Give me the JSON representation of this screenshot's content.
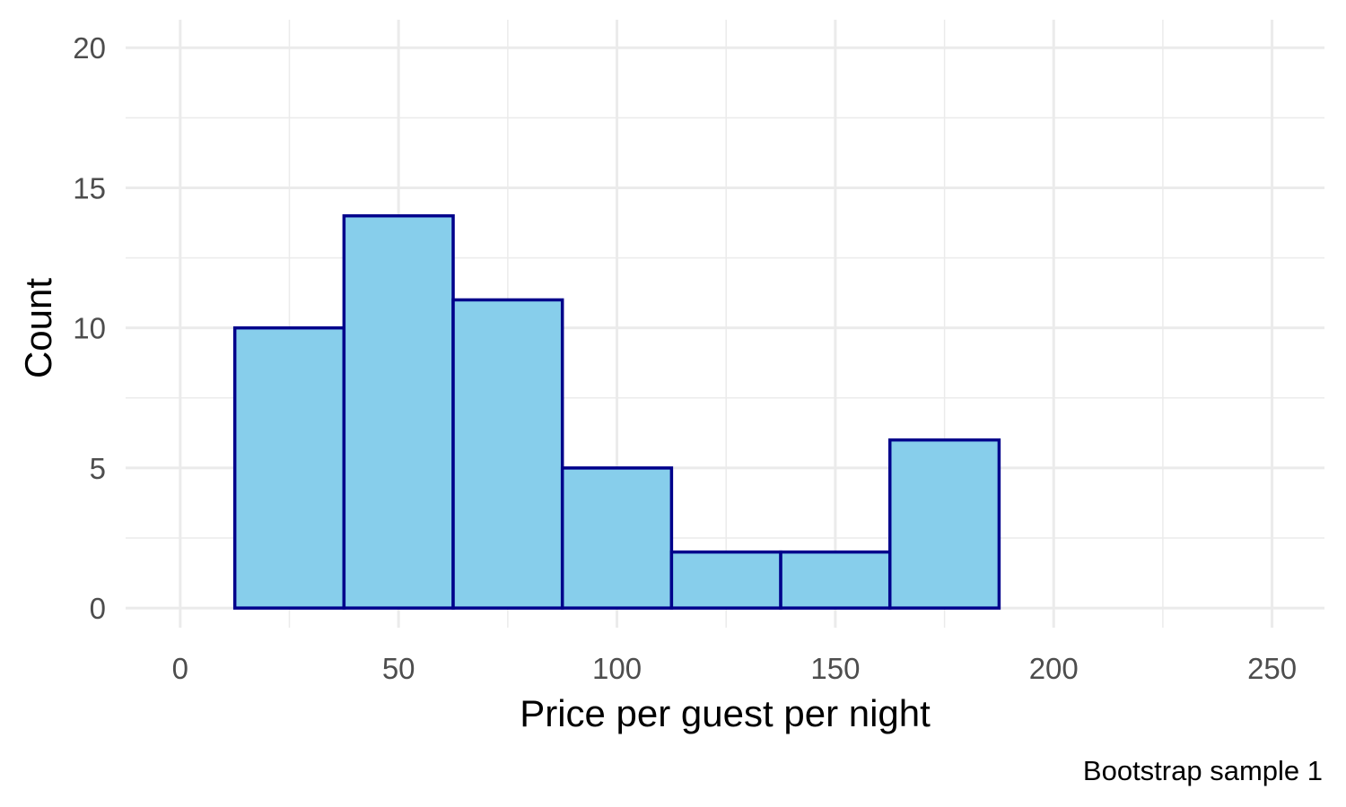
{
  "chart_data": {
    "type": "bar",
    "subtype": "histogram",
    "bin_width": 25,
    "bins": [
      {
        "x_start": 12.5,
        "x_end": 37.5,
        "count": 10
      },
      {
        "x_start": 37.5,
        "x_end": 62.5,
        "count": 14
      },
      {
        "x_start": 62.5,
        "x_end": 87.5,
        "count": 11
      },
      {
        "x_start": 87.5,
        "x_end": 112.5,
        "count": 5
      },
      {
        "x_start": 112.5,
        "x_end": 137.5,
        "count": 2
      },
      {
        "x_start": 137.5,
        "x_end": 162.5,
        "count": 2
      },
      {
        "x_start": 162.5,
        "x_end": 187.5,
        "count": 6
      },
      {
        "x_start": 187.5,
        "x_end": 212.5,
        "count": 0
      },
      {
        "x_start": 212.5,
        "x_end": 237.5,
        "count": 0
      }
    ],
    "xlabel": "Price per guest per night",
    "ylabel": "Count",
    "caption": "Bootstrap sample 1",
    "xlim": [
      -12.5,
      262
    ],
    "ylim": [
      -0.7,
      21
    ],
    "x_ticks": [
      0,
      50,
      100,
      150,
      200,
      250
    ],
    "y_ticks": [
      0,
      5,
      10,
      15,
      20
    ],
    "grid": true,
    "legend": "none",
    "colors": {
      "bar_fill": "#87ceeb",
      "bar_outline": "#00008b"
    }
  }
}
